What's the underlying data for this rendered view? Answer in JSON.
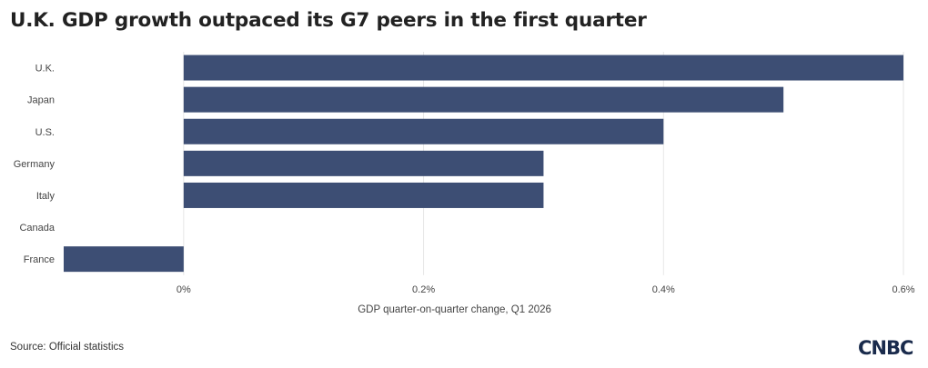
{
  "title": "U.K. GDP growth outpaced its G7 peers in the first quarter",
  "source": "Source: Official statistics",
  "brand": {
    "name": "CNBC",
    "logo_icon": "cnbc-logo-icon",
    "color": "#1a2b4c"
  },
  "chart_data": {
    "type": "bar",
    "orientation": "horizontal",
    "categories": [
      "U.K.",
      "Japan",
      "U.S.",
      "Germany",
      "Italy",
      "Canada",
      "France"
    ],
    "values": [
      0.6,
      0.5,
      0.4,
      0.3,
      0.3,
      0.0,
      -0.1
    ],
    "xlabel": "GDP quarter-on-quarter change, Q1 2026",
    "ylabel": "",
    "xlim": [
      -0.1,
      0.6
    ],
    "x_ticks": [
      0,
      0.2,
      0.4,
      0.6
    ],
    "x_tick_labels": [
      "0%",
      "0.2%",
      "0.4%",
      "0.6%"
    ],
    "bar_color": "#3d4e74",
    "grid": true,
    "legend": "none"
  }
}
